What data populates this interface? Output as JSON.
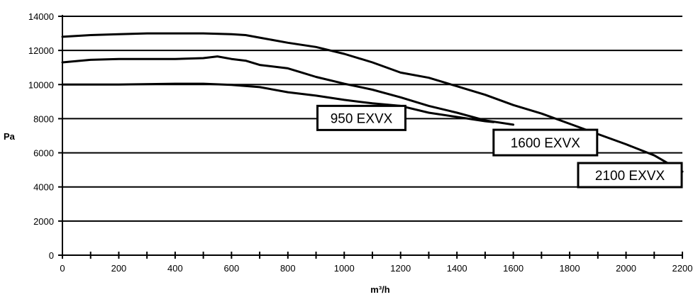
{
  "chart_data": {
    "type": "line",
    "title": "",
    "xlabel": "m³/h",
    "ylabel": "Pa",
    "xlim": [
      0,
      2200
    ],
    "ylim": [
      0,
      14000
    ],
    "x_ticks": [
      0,
      200,
      400,
      600,
      800,
      1000,
      1200,
      1400,
      1600,
      1800,
      2000,
      2200
    ],
    "y_ticks": [
      0,
      2000,
      4000,
      6000,
      8000,
      10000,
      12000,
      14000
    ],
    "grid": "horizontal",
    "series": [
      {
        "name": "950 EXVX",
        "x": [
          0,
          200,
          400,
          500,
          600,
          700,
          800,
          900,
          1000,
          1100,
          1200,
          1300,
          1400,
          1500,
          1530
        ],
        "y": [
          10000,
          10000,
          10050,
          10050,
          9980,
          9850,
          9550,
          9350,
          9100,
          8900,
          8750,
          8350,
          8100,
          7850,
          7800
        ]
      },
      {
        "name": "1600 EXVX",
        "x": [
          0,
          100,
          200,
          300,
          400,
          500,
          550,
          600,
          650,
          700,
          800,
          850,
          900,
          1000,
          1100,
          1200,
          1300,
          1400,
          1500,
          1600
        ],
        "y": [
          11300,
          11450,
          11500,
          11500,
          11500,
          11550,
          11650,
          11500,
          11400,
          11150,
          10950,
          10700,
          10450,
          10050,
          9700,
          9250,
          8750,
          8350,
          7900,
          7650
        ]
      },
      {
        "name": "2100 EXVX",
        "x": [
          0,
          100,
          200,
          300,
          400,
          500,
          600,
          650,
          700,
          800,
          900,
          1000,
          1100,
          1200,
          1300,
          1400,
          1500,
          1600,
          1700,
          1800,
          1900,
          2000,
          2100,
          2200
        ],
        "y": [
          12800,
          12900,
          12950,
          13000,
          13000,
          13000,
          12950,
          12900,
          12750,
          12450,
          12200,
          11800,
          11300,
          10700,
          10400,
          9900,
          9400,
          8800,
          8300,
          7700,
          7100,
          6500,
          5850,
          4900
        ]
      }
    ],
    "annotations": [
      {
        "text": "950 EXVX"
      },
      {
        "text": "1600 EXVX"
      },
      {
        "text": "2100 EXVX"
      }
    ]
  }
}
